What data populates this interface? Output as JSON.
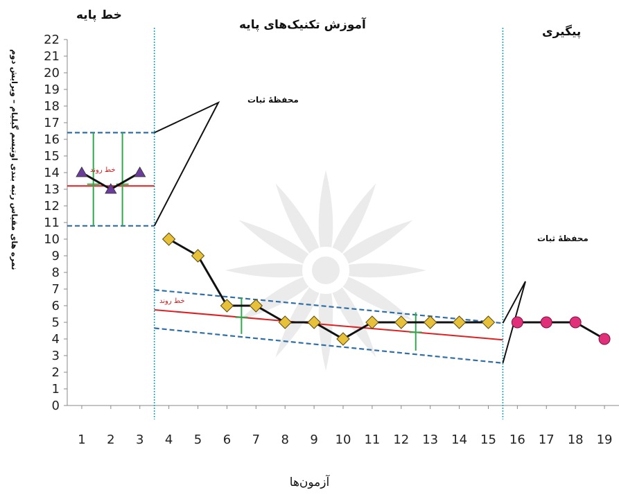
{
  "phases": {
    "baseline": "خط پایه",
    "training": "آموزش تکنیک‌های پایه",
    "followup": "پیگیری"
  },
  "annotations": {
    "stability_envelope_1": "محفظهٔ ثبات",
    "stability_envelope_2": "محفظهٔ ثبات",
    "trend_line_1": "خط روند",
    "trend_line_2": "خط روند"
  },
  "chart_data": {
    "type": "line",
    "title": "",
    "xlabel": "آزمون‌ها",
    "ylabel": "نمره های مقیاس رتبه بندی اوتیسم گیلیام – ویرایش دوم",
    "xlim": [
      0.5,
      19.5
    ],
    "ylim": [
      0,
      22
    ],
    "x_ticks": [
      1,
      2,
      3,
      4,
      5,
      6,
      7,
      8,
      9,
      10,
      11,
      12,
      13,
      14,
      15,
      16,
      17,
      18,
      19
    ],
    "y_ticks": [
      0,
      1,
      2,
      3,
      4,
      5,
      6,
      7,
      8,
      9,
      10,
      11,
      12,
      13,
      14,
      15,
      16,
      17,
      18,
      19,
      20,
      21,
      22
    ],
    "phase_boundaries": [
      3.5,
      15.5
    ],
    "series": [
      {
        "x": [
          1,
          2,
          3
        ],
        "values": [
          14,
          13,
          14
        ],
        "marker": "triangle",
        "color": "#6a3d9a"
      },
      {
        "x": [
          4,
          5,
          6,
          7,
          8,
          9,
          10,
          11,
          12,
          13,
          14,
          15
        ],
        "values": [
          10,
          9,
          6,
          6,
          5,
          5,
          4,
          5,
          5,
          5,
          5,
          5
        ],
        "marker": "diamond",
        "color": "#e8c13a"
      },
      {
        "x": [
          16,
          17,
          18,
          19
        ],
        "values": [
          5,
          5,
          5,
          4
        ],
        "marker": "circle",
        "color": "#e0307a"
      }
    ],
    "trend_lines": [
      {
        "x": [
          0.5,
          3.5
        ],
        "values": [
          13.2,
          13.2
        ],
        "color": "#e02020"
      },
      {
        "x": [
          3.5,
          15.5
        ],
        "values": [
          5.75,
          3.95
        ],
        "color": "#e02020"
      }
    ],
    "stability_envelopes": [
      {
        "x": [
          0.5,
          3.5
        ],
        "upper": [
          16.4,
          16.4
        ],
        "lower": [
          10.8,
          10.8
        ]
      },
      {
        "x": [
          3.5,
          15.5
        ],
        "upper": [
          6.95,
          4.95
        ],
        "lower": [
          4.65,
          2.55
        ]
      }
    ],
    "split_middle_marks": [
      {
        "x": 1.4,
        "y": 13.3,
        "range": [
          10.8,
          16.4
        ]
      },
      {
        "x": 2.4,
        "y": 13.3,
        "range": [
          10.8,
          16.4
        ]
      },
      {
        "x": 6.5,
        "y": 5.3,
        "range": [
          4.3,
          6.5
        ]
      },
      {
        "x": 12.5,
        "y": 4.4,
        "range": [
          3.3,
          5.6
        ]
      }
    ],
    "colors": {
      "phase_line": "#1aa6b7",
      "envelope": "#2f6fa8",
      "trend": "#e02020",
      "median_mark": "#2eaa4a"
    }
  }
}
